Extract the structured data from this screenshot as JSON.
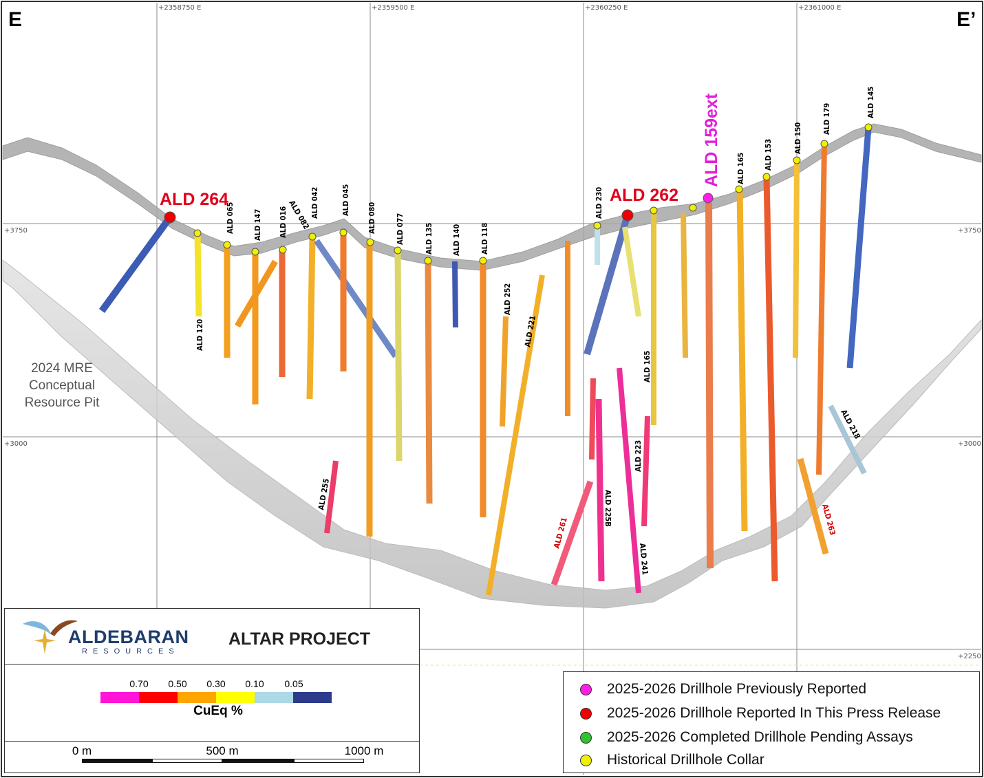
{
  "corners": {
    "left": "E",
    "right": "E’"
  },
  "grid": {
    "eastings": [
      "+2358750 E",
      "+2359500 E",
      "+2360250 E",
      "+2361000 E"
    ],
    "elevations": [
      "+3750",
      "+3000",
      "+2250"
    ]
  },
  "pit_label": [
    "2024 MRE",
    "Conceptual",
    "Resource Pit"
  ],
  "drillholes": {
    "highlight": {
      "ald264": "ALD 264",
      "ald262": "ALD 262",
      "ald159ext": "ALD 159ext"
    },
    "labels": {
      "ald065": "ALD 065",
      "ald147": "ALD 147",
      "ald016": "ALD 016",
      "ald082": "ALD 082",
      "ald042": "ALD 042",
      "ald045": "ALD 045",
      "ald080": "ALD 080",
      "ald077": "ALD 077",
      "ald135": "ALD 135",
      "ald140": "ALD 140",
      "ald118": "ALD 118",
      "ald120": "ALD 120",
      "ald252": "ALD 252",
      "ald221": "ALD 221",
      "ald230": "ALD 230",
      "ald165a": "ALD 165",
      "ald165b": "ALD 165",
      "ald153": "ALD 153",
      "ald150": "ALD 150",
      "ald179": "ALD 179",
      "ald145": "ALD 145",
      "ald255": "ALD 255",
      "ald261": "ALD 261",
      "ald225b": "ALD 225B",
      "ald223": "ALD 223",
      "ald241": "ALD 241",
      "ald263": "ALD 263",
      "ald218": "ALD 218"
    }
  },
  "logo": {
    "company": "ALDEBARAN",
    "sub": "RESOURCES",
    "project": "ALTAR PROJECT"
  },
  "colorbar": {
    "ticks": [
      "0.70",
      "0.50",
      "0.30",
      "0.10",
      "0.05"
    ],
    "colors": [
      "#ff14d8",
      "#ff0000",
      "#ffa500",
      "#ffff00",
      "#add8e6",
      "#2e3a8c"
    ],
    "title": "CuEq %"
  },
  "scalebar": {
    "labels": [
      "0 m",
      "500 m",
      "1000 m"
    ]
  },
  "legend": {
    "items": [
      {
        "label": "2025-2026 Drillhole Previously Reported",
        "color": "#ff1ee8"
      },
      {
        "label": "2025-2026 Drillhole Reported In This Press Release",
        "color": "#ee0000"
      },
      {
        "label": "2025-2026 Completed Drillhole Pending Assays",
        "color": "#2fc42f"
      },
      {
        "label": "Historical Drillhole Collar",
        "color": "#f0f000"
      }
    ]
  },
  "colors": {
    "grid": "#8a8a8a",
    "pit": "#cfcfcf",
    "topo": "#9a9a9a"
  }
}
